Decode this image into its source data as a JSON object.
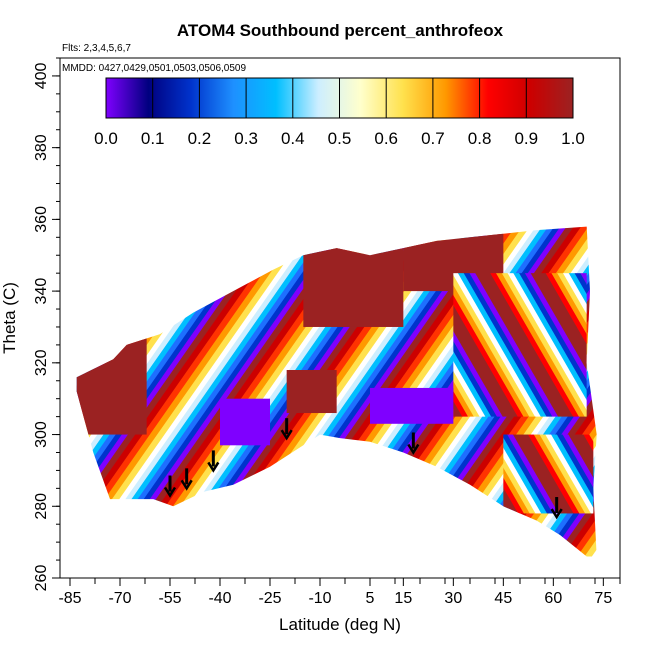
{
  "chart_data": {
    "type": "heatmap",
    "title": "ATOM4 Southbound percent_anthrofeox",
    "flights_label": "Flts: 2,3,4,5,6,7",
    "mmdd_label": "MMDD: 0427,0429,0501,0503,0506,0509",
    "xlabel": "Latitude (deg N)",
    "ylabel": "Theta (C)",
    "xlim": [
      -88,
      80
    ],
    "ylim": [
      260,
      405
    ],
    "x_ticks": [
      -85,
      -70,
      -55,
      -40,
      -25,
      -10,
      5,
      15,
      30,
      45,
      60,
      75
    ],
    "y_ticks": [
      260,
      280,
      300,
      320,
      340,
      360,
      380,
      400
    ],
    "colorbar": {
      "ticks": [
        0.0,
        0.1,
        0.2,
        0.3,
        0.4,
        0.5,
        0.6,
        0.7,
        0.8,
        0.9,
        1.0
      ],
      "tick_labels": [
        "0.0",
        "0.1",
        "0.2",
        "0.3",
        "0.4",
        "0.5",
        "0.6",
        "0.7",
        "0.8",
        "0.9",
        "1.0"
      ],
      "range": [
        0,
        1
      ],
      "colors": [
        "#7f00ff",
        "#00007f",
        "#0033cc",
        "#1e90ff",
        "#00bfff",
        "#cdeeff",
        "#ffffcc",
        "#ffe14d",
        "#ff9900",
        "#ff0000",
        "#cc0000",
        "#9b2222"
      ]
    },
    "domain_top": [
      [
        -83,
        316
      ],
      [
        -72,
        321
      ],
      [
        -68,
        325
      ],
      [
        -58,
        328
      ],
      [
        -48,
        334
      ],
      [
        -40,
        338
      ],
      [
        -32,
        342
      ],
      [
        -24,
        346
      ],
      [
        -15,
        350
      ],
      [
        -5,
        352
      ],
      [
        5,
        350
      ],
      [
        15,
        352
      ],
      [
        25,
        354
      ],
      [
        35,
        355
      ],
      [
        45,
        356
      ],
      [
        55,
        357
      ],
      [
        70,
        358
      ],
      [
        71,
        340
      ],
      [
        70,
        320
      ],
      [
        73,
        300
      ],
      [
        72,
        285
      ],
      [
        73,
        266
      ]
    ],
    "domain_bottom": [
      [
        -83,
        312
      ],
      [
        -78,
        295
      ],
      [
        -73,
        282
      ],
      [
        -60,
        282
      ],
      [
        -54,
        280
      ],
      [
        -45,
        284
      ],
      [
        -36,
        286
      ],
      [
        -25,
        291
      ],
      [
        -15,
        297
      ],
      [
        -10,
        300
      ],
      [
        -4,
        299
      ],
      [
        5,
        298
      ],
      [
        15,
        295
      ],
      [
        25,
        291
      ],
      [
        35,
        286
      ],
      [
        45,
        280
      ],
      [
        55,
        276
      ],
      [
        62,
        272
      ],
      [
        70,
        266
      ],
      [
        73,
        266
      ]
    ],
    "flight_markers": [
      {
        "x": -55,
        "y": 283
      },
      {
        "x": -50,
        "y": 285
      },
      {
        "x": -42,
        "y": 290
      },
      {
        "x": -20,
        "y": 299
      },
      {
        "x": 18,
        "y": 295
      },
      {
        "x": 61,
        "y": 277
      }
    ]
  }
}
